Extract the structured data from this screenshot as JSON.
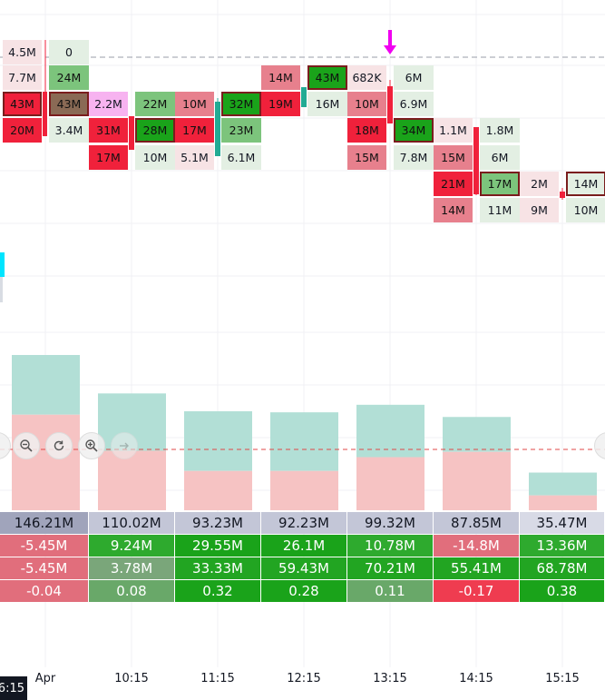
{
  "chart_data": {
    "type": "footprint",
    "x_labels": [
      "Apr",
      "10:15",
      "11:15",
      "12:15",
      "13:15",
      "14:15",
      "15:15"
    ],
    "current_time_label": "6:15",
    "footprint_bars": [
      {
        "col": 0,
        "rows": [
          {
            "level": 0,
            "sell": "4.5M",
            "buy": "0"
          },
          {
            "level": 1,
            "sell": "7.7M",
            "buy": "24M"
          },
          {
            "level": 2,
            "sell": "43M",
            "buy": "43M"
          },
          {
            "level": 3,
            "sell": "20M",
            "buy": "3.4M"
          }
        ]
      },
      {
        "col": 1,
        "rows": [
          {
            "level": 2,
            "sell": "2.2M",
            "buy": "22M"
          },
          {
            "level": 3,
            "sell": "31M",
            "buy": "28M"
          },
          {
            "level": 4,
            "sell": "17M",
            "buy": "10M"
          }
        ]
      },
      {
        "col": 2,
        "rows": [
          {
            "level": 2,
            "sell": "10M",
            "buy": "32M"
          },
          {
            "level": 3,
            "sell": "17M",
            "buy": "23M"
          },
          {
            "level": 4,
            "sell": "5.1M",
            "buy": "6.1M"
          }
        ]
      },
      {
        "col": 3,
        "rows": [
          {
            "level": 1,
            "sell": "14M",
            "buy": "43M"
          },
          {
            "level": 2,
            "sell": "19M",
            "buy": "16M"
          }
        ]
      },
      {
        "col": 4,
        "rows": [
          {
            "level": 1,
            "sell": "682K",
            "buy": "6M"
          },
          {
            "level": 2,
            "sell": "10M",
            "buy": "6.9M"
          },
          {
            "level": 3,
            "sell": "18M",
            "buy": "34M"
          },
          {
            "level": 4,
            "sell": "15M",
            "buy": "7.8M"
          }
        ]
      },
      {
        "col": 5,
        "rows": [
          {
            "level": 3,
            "sell": "1.1M",
            "buy": "1.8M"
          },
          {
            "level": 4,
            "sell": "15M",
            "buy": "6M"
          },
          {
            "level": 5,
            "sell": "21M",
            "buy": "17M"
          },
          {
            "level": 6,
            "sell": "14M",
            "buy": "11M"
          }
        ]
      },
      {
        "col": 6,
        "rows": [
          {
            "level": 5,
            "sell": "2M",
            "buy": "14M"
          },
          {
            "level": 6,
            "sell": "9M",
            "buy": "10M"
          }
        ]
      }
    ],
    "volume_bars": [
      {
        "total": 146.21,
        "sell": 90
      },
      {
        "total": 110.02,
        "sell": 56
      },
      {
        "total": 93.23,
        "sell": 37
      },
      {
        "total": 92.23,
        "sell": 37
      },
      {
        "total": 99.32,
        "sell": 50
      },
      {
        "total": 87.85,
        "sell": 55
      },
      {
        "total": 35.47,
        "sell": 14
      }
    ],
    "stats": {
      "total": [
        "146.21M",
        "110.02M",
        "93.23M",
        "92.23M",
        "99.32M",
        "87.85M",
        "35.47M"
      ],
      "delta": [
        "-5.45M",
        "9.24M",
        "29.55M",
        "26.1M",
        "10.78M",
        "-14.8M",
        "13.36M"
      ],
      "cum_delta": [
        "-5.45M",
        "3.78M",
        "33.33M",
        "59.43M",
        "70.21M",
        "55.41M",
        "68.78M"
      ],
      "ratio": [
        "-0.04",
        "0.08",
        "0.32",
        "0.28",
        "0.11",
        "-0.17",
        "0.38"
      ]
    }
  },
  "colors": {
    "buy_strong": "#1aa31a",
    "buy_mid": "#7cc47c",
    "buy_light": "#e3efe3",
    "sell_strong": "#f0213b",
    "sell_mid": "#e7808d",
    "sell_light": "#f7e3e5",
    "poc_pink": "#f7b3f0",
    "vol_buy": "#b2dfd6",
    "vol_sell": "#f6c3c3",
    "total_bg": "#b8bbcf",
    "marker": "#f000f0"
  },
  "icons": {
    "zoom_out": "zoom-out-icon",
    "reset": "reset-icon",
    "zoom_in": "zoom-in-icon",
    "scroll": "scroll-icon"
  }
}
